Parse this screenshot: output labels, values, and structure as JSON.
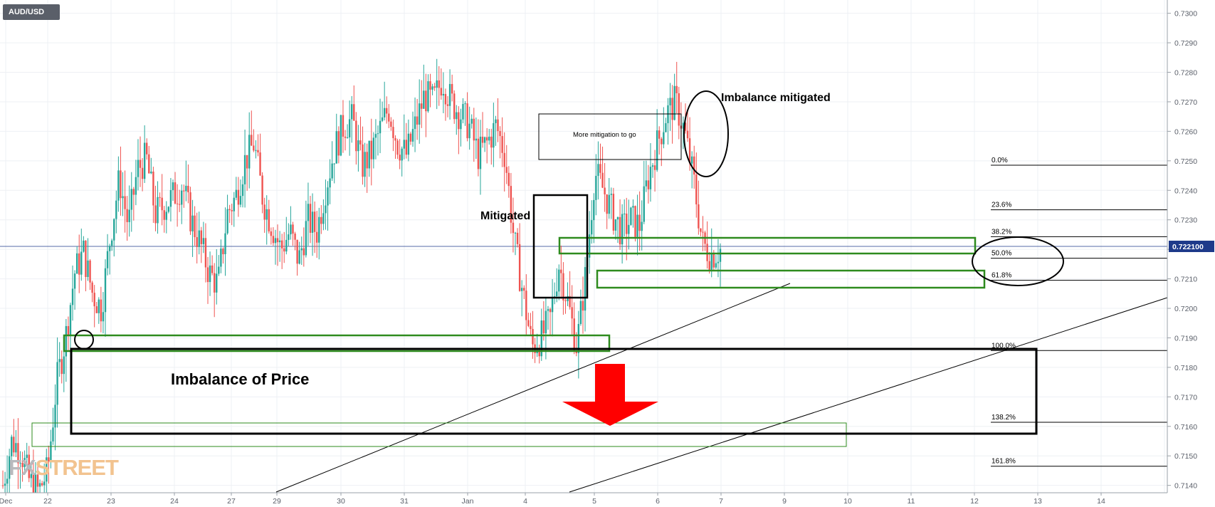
{
  "instrument": "AUD/USD",
  "watermark": {
    "part1": "FX",
    "part2": "STREET"
  },
  "chart_data": {
    "type": "candlestick",
    "title": "AUD/USD",
    "y_axis": {
      "ticks": [
        "0.7300",
        "0.7290",
        "0.7280",
        "0.7270",
        "0.7260",
        "0.7250",
        "0.7240",
        "0.7230",
        "0.7220",
        "0.7210",
        "0.7200",
        "0.7190",
        "0.7180",
        "0.7170",
        "0.7160",
        "0.7150",
        "0.7140"
      ],
      "range": [
        0.71375,
        0.73045
      ],
      "position": "right"
    },
    "x_axis": {
      "ticks": [
        "Dec",
        "22",
        "23",
        "24",
        "27",
        "29",
        "30",
        "31",
        "Jan",
        "4",
        "5",
        "6",
        "7",
        "9",
        "10",
        "11",
        "12",
        "13",
        "14"
      ]
    },
    "current_price": {
      "value": 0.7221,
      "label": "0.722100"
    },
    "fibonacci": [
      {
        "level": "0.0%",
        "price": 0.72485
      },
      {
        "level": "23.6%",
        "price": 0.72334
      },
      {
        "level": "38.2%",
        "price": 0.72243
      },
      {
        "level": "50.0%",
        "price": 0.7217
      },
      {
        "level": "61.8%",
        "price": 0.72095
      },
      {
        "level": "100.0%",
        "price": 0.71857
      },
      {
        "level": "138.2%",
        "price": 0.71614
      },
      {
        "level": "161.8%",
        "price": 0.71465
      }
    ],
    "annotations": {
      "imbalance_mitigated": "Imbalance mitigated",
      "more_mitigation": "More mitigation to go",
      "mitigated": "Mitigated",
      "imbalance_of_price": "Imbalance of Price"
    },
    "ohlc_path": [
      0.714,
      0.7155,
      0.7152,
      0.7141,
      0.7138,
      0.7145,
      0.7175,
      0.719,
      0.7212,
      0.7219,
      0.7205,
      0.72,
      0.7225,
      0.7244,
      0.7228,
      0.7247,
      0.7251,
      0.7232,
      0.7235,
      0.7238,
      0.7242,
      0.723,
      0.7222,
      0.7212,
      0.7208,
      0.7232,
      0.7238,
      0.725,
      0.7256,
      0.7237,
      0.7228,
      0.722,
      0.7226,
      0.7216,
      0.723,
      0.7226,
      0.7241,
      0.7254,
      0.7262,
      0.7264,
      0.7248,
      0.7252,
      0.726,
      0.7268,
      0.7256,
      0.7252,
      0.7262,
      0.7272,
      0.727,
      0.7278,
      0.727,
      0.7266,
      0.7262,
      0.7252,
      0.7256,
      0.7262,
      0.7252,
      0.7223,
      0.7205,
      0.7187,
      0.719,
      0.7196,
      0.7215,
      0.7202,
      0.7187,
      0.7212,
      0.7246,
      0.724,
      0.7232,
      0.7226,
      0.723,
      0.7228,
      0.7245,
      0.7256,
      0.7266,
      0.727,
      0.726,
      0.7244,
      0.7222,
      0.7218,
      0.722
    ]
  },
  "colors": {
    "bull": "#26a69a",
    "bear": "#ef5350",
    "zone": "#2e8b1e",
    "box": "#000000",
    "arrow": "#ff0000",
    "price_tag": "#1e3a8a"
  }
}
